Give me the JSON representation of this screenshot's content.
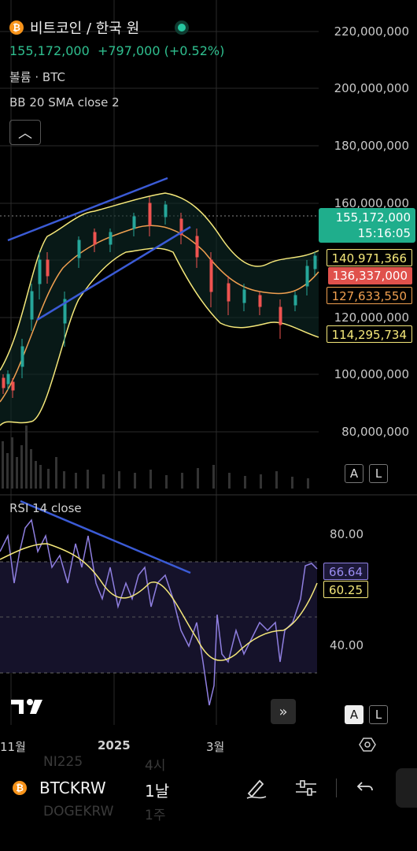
{
  "header": {
    "title": "비트코인 / 한국 원",
    "price": "155,172,000",
    "change": "+797,000 (+0.52%)",
    "volume_label": "볼륨 · BTC",
    "bb_label": "BB 20 SMA close 2",
    "collapse_icon": "chevron-up-icon"
  },
  "price_axis": [
    "220,000,000",
    "200,000,000",
    "180,000,000",
    "160,000,000",
    "120,000,000",
    "100,000,000",
    "80,000,000"
  ],
  "price_tags": {
    "current_price": "155,172,000",
    "countdown": "15:16:05",
    "bb_upper": "140,971,366",
    "bb_basis_red": "136,337,000",
    "bb_basis_orange": "127,633,550",
    "bb_lower": "114,295,734"
  },
  "rsi": {
    "label": "RSI 14 close",
    "axis": [
      "80.00",
      "40.00"
    ],
    "value": "66.64",
    "ma_value": "60.25"
  },
  "scale_buttons": {
    "auto": "A",
    "log": "L"
  },
  "time_axis": [
    "11월",
    "2025",
    "3월"
  ],
  "toolbar": {
    "symbol": "BTCKRW",
    "interval": "1날",
    "ghost_rows": [
      [
        "NI225",
        "4시"
      ],
      [
        "DOGEKRW",
        "1주"
      ]
    ],
    "icons": [
      "pen-icon",
      "sliders-icon",
      "undo-icon"
    ]
  },
  "colors": {
    "up": "#26a69a",
    "down": "#ef5350",
    "bb_band": "#f5e87a",
    "rsi": "#8f7fe0",
    "trend": "#3b5bd6",
    "accent": "#1fae8c"
  }
}
